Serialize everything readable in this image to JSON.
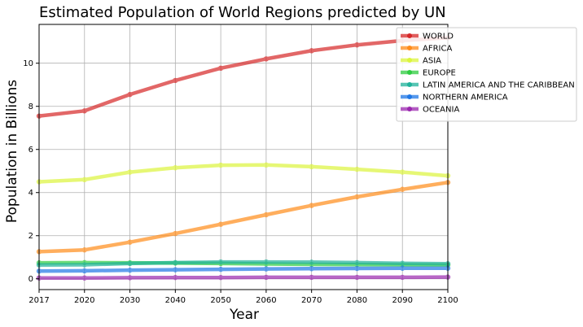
{
  "chart_data": {
    "type": "line",
    "title": "Estimated Population of World Regions predicted by UN",
    "xlabel": "Year",
    "ylabel": "Population in Billions",
    "x": [
      "2017",
      "2020",
      "2030",
      "2040",
      "2050",
      "2060",
      "2070",
      "2080",
      "2090",
      "2100"
    ],
    "yticks": [
      "0",
      "2",
      "4",
      "6",
      "8",
      "10"
    ],
    "ylim": [
      -0.5,
      11.8
    ],
    "grid": true,
    "legend_position": "top-right",
    "series": [
      {
        "name": "WORLD",
        "color": "#d62728",
        "values": [
          7.55,
          7.79,
          8.55,
          9.2,
          9.77,
          10.2,
          10.58,
          10.85,
          11.05,
          11.18
        ]
      },
      {
        "name": "AFRICA",
        "color": "#ff8c1a",
        "values": [
          1.26,
          1.34,
          1.7,
          2.1,
          2.53,
          2.97,
          3.4,
          3.8,
          4.15,
          4.47
        ]
      },
      {
        "name": "ASIA",
        "color": "#dcf53c",
        "values": [
          4.5,
          4.6,
          4.95,
          5.15,
          5.27,
          5.28,
          5.2,
          5.08,
          4.95,
          4.78
        ]
      },
      {
        "name": "EUROPE",
        "color": "#2ecc40",
        "values": [
          0.74,
          0.75,
          0.74,
          0.73,
          0.71,
          0.69,
          0.67,
          0.66,
          0.65,
          0.64
        ]
      },
      {
        "name": "LATIN AMERICA AND THE CARIBBEAN",
        "color": "#1fb29a",
        "values": [
          0.64,
          0.65,
          0.71,
          0.75,
          0.78,
          0.78,
          0.77,
          0.75,
          0.72,
          0.7
        ]
      },
      {
        "name": "NORTHERN AMERICA",
        "color": "#1f77e6",
        "values": [
          0.36,
          0.37,
          0.4,
          0.42,
          0.44,
          0.46,
          0.47,
          0.48,
          0.49,
          0.49
        ]
      },
      {
        "name": "OCEANIA",
        "color": "#9b27af",
        "values": [
          0.04,
          0.04,
          0.05,
          0.06,
          0.06,
          0.07,
          0.07,
          0.07,
          0.07,
          0.08
        ]
      }
    ]
  }
}
